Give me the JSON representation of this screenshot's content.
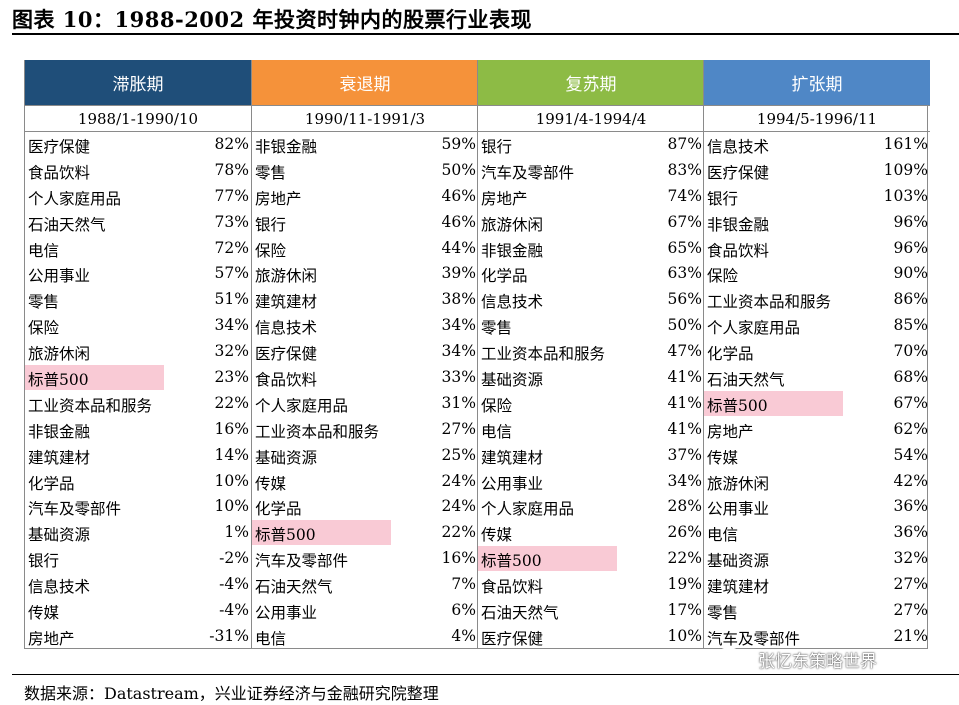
{
  "title": "图表 10：1988-2002 年投资时钟内的股票行业表现",
  "source": "数据来源：Datastream，兴业证券经济与金融研究院整理",
  "watermark": "张忆东策略世界",
  "colors": {
    "stagnation": "#1f4e79",
    "recession": "#f5923a",
    "recovery": "#8dbb45",
    "expansion": "#4f87c6",
    "highlight": "#f9cad5"
  },
  "columns": [
    {
      "phase": "滞胀期",
      "period": "1988/1-1990/10",
      "rows": [
        {
          "name": "医疗保健",
          "value": "82%"
        },
        {
          "name": "食品饮料",
          "value": "78%"
        },
        {
          "name": "个人家庭用品",
          "value": "77%"
        },
        {
          "name": "石油天然气",
          "value": "73%"
        },
        {
          "name": "电信",
          "value": "72%"
        },
        {
          "name": "公用事业",
          "value": "57%"
        },
        {
          "name": "零售",
          "value": "51%"
        },
        {
          "name": "保险",
          "value": "34%"
        },
        {
          "name": "旅游休闲",
          "value": "32%"
        },
        {
          "name": "标普500",
          "value": "23%",
          "highlight": true
        },
        {
          "name": "工业资本品和服务",
          "value": "22%"
        },
        {
          "name": "非银金融",
          "value": "16%"
        },
        {
          "name": "建筑建材",
          "value": "14%"
        },
        {
          "name": "化学品",
          "value": "10%"
        },
        {
          "name": "汽车及零部件",
          "value": "10%"
        },
        {
          "name": "基础资源",
          "value": "1%"
        },
        {
          "name": "银行",
          "value": "-2%"
        },
        {
          "name": "信息技术",
          "value": "-4%"
        },
        {
          "name": "传媒",
          "value": "-4%"
        },
        {
          "name": "房地产",
          "value": "-31%"
        }
      ]
    },
    {
      "phase": "衰退期",
      "period": "1990/11-1991/3",
      "rows": [
        {
          "name": "非银金融",
          "value": "59%"
        },
        {
          "name": "零售",
          "value": "50%"
        },
        {
          "name": "房地产",
          "value": "46%"
        },
        {
          "name": "银行",
          "value": "46%"
        },
        {
          "name": "保险",
          "value": "44%"
        },
        {
          "name": "旅游休闲",
          "value": "39%"
        },
        {
          "name": "建筑建材",
          "value": "38%"
        },
        {
          "name": "信息技术",
          "value": "34%"
        },
        {
          "name": "医疗保健",
          "value": "34%"
        },
        {
          "name": "食品饮料",
          "value": "33%"
        },
        {
          "name": "个人家庭用品",
          "value": "31%"
        },
        {
          "name": "工业资本品和服务",
          "value": "27%"
        },
        {
          "name": "基础资源",
          "value": "25%"
        },
        {
          "name": "传媒",
          "value": "24%"
        },
        {
          "name": "化学品",
          "value": "24%"
        },
        {
          "name": "标普500",
          "value": "22%",
          "highlight": true
        },
        {
          "name": "汽车及零部件",
          "value": "16%"
        },
        {
          "name": "石油天然气",
          "value": "7%"
        },
        {
          "name": "公用事业",
          "value": "6%"
        },
        {
          "name": "电信",
          "value": "4%"
        }
      ]
    },
    {
      "phase": "复苏期",
      "period": "1991/4-1994/4",
      "rows": [
        {
          "name": "银行",
          "value": "87%"
        },
        {
          "name": "汽车及零部件",
          "value": "83%"
        },
        {
          "name": "房地产",
          "value": "74%"
        },
        {
          "name": "旅游休闲",
          "value": "67%"
        },
        {
          "name": "非银金融",
          "value": "65%"
        },
        {
          "name": "化学品",
          "value": "63%"
        },
        {
          "name": "信息技术",
          "value": "56%"
        },
        {
          "name": "零售",
          "value": "50%"
        },
        {
          "name": "工业资本品和服务",
          "value": "47%"
        },
        {
          "name": "基础资源",
          "value": "41%"
        },
        {
          "name": "保险",
          "value": "41%"
        },
        {
          "name": "电信",
          "value": "41%"
        },
        {
          "name": "建筑建材",
          "value": "37%"
        },
        {
          "name": "公用事业",
          "value": "34%"
        },
        {
          "name": "个人家庭用品",
          "value": "28%"
        },
        {
          "name": "传媒",
          "value": "26%"
        },
        {
          "name": "标普500",
          "value": "22%",
          "highlight": true
        },
        {
          "name": "食品饮料",
          "value": "19%"
        },
        {
          "name": "石油天然气",
          "value": "17%"
        },
        {
          "name": "医疗保健",
          "value": "10%"
        }
      ]
    },
    {
      "phase": "扩张期",
      "period": "1994/5-1996/11",
      "rows": [
        {
          "name": "信息技术",
          "value": "161%"
        },
        {
          "name": "医疗保健",
          "value": "109%"
        },
        {
          "name": "银行",
          "value": "103%"
        },
        {
          "name": "非银金融",
          "value": "96%"
        },
        {
          "name": "食品饮料",
          "value": "96%"
        },
        {
          "name": "保险",
          "value": "90%"
        },
        {
          "name": "工业资本品和服务",
          "value": "86%"
        },
        {
          "name": "个人家庭用品",
          "value": "85%"
        },
        {
          "name": "化学品",
          "value": "70%"
        },
        {
          "name": "石油天然气",
          "value": "68%"
        },
        {
          "name": "标普500",
          "value": "67%",
          "highlight": true
        },
        {
          "name": "房地产",
          "value": "62%"
        },
        {
          "name": "传媒",
          "value": "54%"
        },
        {
          "name": "旅游休闲",
          "value": "42%"
        },
        {
          "name": "公用事业",
          "value": "36%"
        },
        {
          "name": "电信",
          "value": "36%"
        },
        {
          "name": "基础资源",
          "value": "32%"
        },
        {
          "name": "建筑建材",
          "value": "27%"
        },
        {
          "name": "零售",
          "value": "27%"
        },
        {
          "name": "汽车及零部件",
          "value": "21%"
        }
      ]
    }
  ]
}
